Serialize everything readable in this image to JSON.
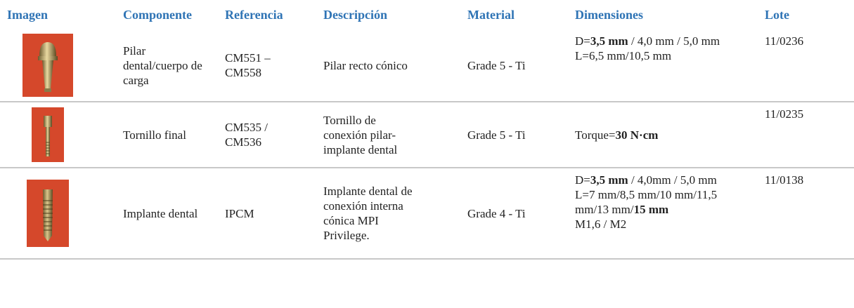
{
  "table": {
    "headers": [
      "Imagen",
      "Componente",
      "Referencia",
      "Descripción",
      "Material",
      "Dimensiones",
      "Lote"
    ],
    "rows": [
      {
        "componente": "Pilar dental/cuerpo de carga",
        "referencia": "CM551 – CM558",
        "descripcion": "Pilar recto cónico",
        "material": "Grade 5 - Ti",
        "dimensiones": [
          [
            {
              "text": "D=",
              "bold": false
            },
            {
              "text": "3,5 mm",
              "bold": true
            },
            {
              "text": " / 4,0 mm / 5,0 mm",
              "bold": false
            }
          ],
          [
            {
              "text": "L=6,5 mm/10,5 mm",
              "bold": false
            }
          ]
        ],
        "lote": "11/0236"
      },
      {
        "componente": "Tornillo final",
        "referencia": "CM535 / CM536",
        "descripcion": "Tornillo de conexión pilar-implante dental",
        "material": "Grade 5 - Ti",
        "dimensiones": [
          [
            {
              "text": "Torque=",
              "bold": false
            },
            {
              "text": "30 N·cm",
              "bold": true
            }
          ]
        ],
        "lote": "11/0235"
      },
      {
        "componente": "Implante dental",
        "referencia": "IPCM",
        "descripcion": "Implante dental de conexión interna cónica MPI Privilege.",
        "material": "Grade 4 - Ti",
        "dimensiones": [
          [
            {
              "text": "D=",
              "bold": false
            },
            {
              "text": "3,5 mm",
              "bold": true
            },
            {
              "text": " / 4,0mm / 5,0 mm",
              "bold": false
            }
          ],
          [
            {
              "text": "L=7 mm/8,5 mm/10 mm/11,5 mm/13 mm/",
              "bold": false
            },
            {
              "text": "15 mm",
              "bold": true
            }
          ],
          [
            {
              "text": "M1,6 / M2",
              "bold": false
            }
          ]
        ],
        "lote": "11/0138"
      }
    ]
  }
}
